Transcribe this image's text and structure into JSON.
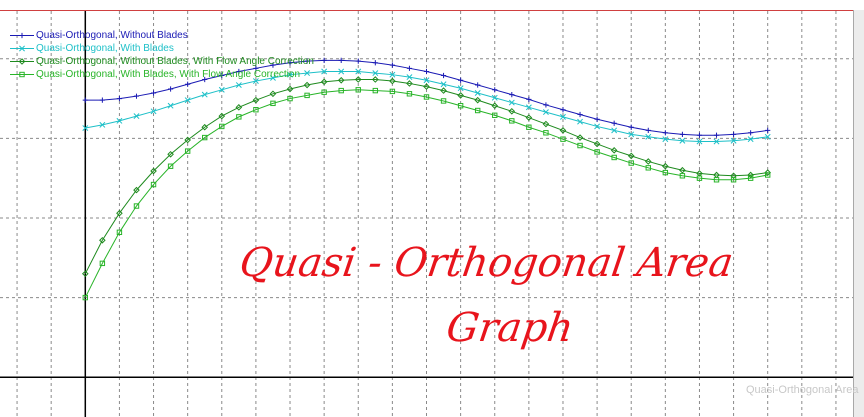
{
  "chart_data": {
    "type": "line",
    "title": "",
    "xlabel": "",
    "ylabel": "",
    "grid": true,
    "legend_position": "top-left",
    "xlim": [
      -1.25,
      11.25
    ],
    "ylim": [
      -0.5,
      4.6
    ],
    "x": [
      0,
      0.25,
      0.5,
      0.75,
      1,
      1.25,
      1.5,
      1.75,
      2,
      2.25,
      2.5,
      2.75,
      3,
      3.25,
      3.5,
      3.75,
      4,
      4.25,
      4.5,
      4.75,
      5,
      5.25,
      5.5,
      5.75,
      6,
      6.25,
      6.5,
      6.75,
      7,
      7.25,
      7.5,
      7.75,
      8,
      8.25,
      8.5,
      8.75,
      9,
      9.25,
      9.5,
      9.75,
      10
    ],
    "series": [
      {
        "name": "Quasi-Orthogonal, Without Blades",
        "color": "#1a1ab4",
        "marker": "plus",
        "values": [
          3.48,
          3.48,
          3.5,
          3.53,
          3.57,
          3.62,
          3.68,
          3.74,
          3.79,
          3.84,
          3.88,
          3.92,
          3.95,
          3.97,
          3.98,
          3.98,
          3.97,
          3.95,
          3.92,
          3.88,
          3.84,
          3.79,
          3.73,
          3.67,
          3.61,
          3.55,
          3.49,
          3.42,
          3.36,
          3.3,
          3.24,
          3.19,
          3.14,
          3.1,
          3.07,
          3.05,
          3.04,
          3.04,
          3.05,
          3.07,
          3.1
        ]
      },
      {
        "name": "Quasi-Orthogonal, With Blades",
        "color": "#1ec0c8",
        "marker": "x",
        "values": [
          3.13,
          3.17,
          3.22,
          3.28,
          3.34,
          3.41,
          3.48,
          3.55,
          3.61,
          3.67,
          3.72,
          3.76,
          3.8,
          3.82,
          3.84,
          3.84,
          3.84,
          3.82,
          3.8,
          3.77,
          3.73,
          3.68,
          3.63,
          3.57,
          3.51,
          3.45,
          3.39,
          3.33,
          3.27,
          3.21,
          3.15,
          3.1,
          3.05,
          3.02,
          2.99,
          2.97,
          2.96,
          2.96,
          2.97,
          2.99,
          3.02
        ]
      },
      {
        "name": "Quasi-Orthogonal, Without Blades, With Flow Angle Correction",
        "color": "#1e8a1e",
        "marker": "diamond",
        "values": [
          1.3,
          1.72,
          2.06,
          2.35,
          2.59,
          2.8,
          2.98,
          3.14,
          3.28,
          3.39,
          3.48,
          3.56,
          3.62,
          3.67,
          3.71,
          3.73,
          3.74,
          3.74,
          3.72,
          3.69,
          3.65,
          3.6,
          3.54,
          3.48,
          3.41,
          3.34,
          3.26,
          3.18,
          3.1,
          3.01,
          2.93,
          2.85,
          2.78,
          2.71,
          2.65,
          2.6,
          2.56,
          2.54,
          2.53,
          2.54,
          2.57
        ]
      },
      {
        "name": "Quasi-Orthogonal, With Blades, With Flow Angle Correction",
        "color": "#28b428",
        "marker": "square",
        "values": [
          1.0,
          1.43,
          1.82,
          2.15,
          2.42,
          2.65,
          2.84,
          3.01,
          3.15,
          3.27,
          3.36,
          3.44,
          3.5,
          3.54,
          3.58,
          3.6,
          3.61,
          3.6,
          3.59,
          3.56,
          3.52,
          3.47,
          3.41,
          3.35,
          3.29,
          3.22,
          3.14,
          3.07,
          2.99,
          2.91,
          2.83,
          2.76,
          2.69,
          2.63,
          2.57,
          2.53,
          2.5,
          2.48,
          2.48,
          2.5,
          2.54
        ]
      }
    ]
  },
  "annotation": {
    "line1": "Quasi - Orthogonal Area",
    "line2": "Graph",
    "color": "#e8141c"
  },
  "watermark": "Quasi-Orthogonal Area"
}
